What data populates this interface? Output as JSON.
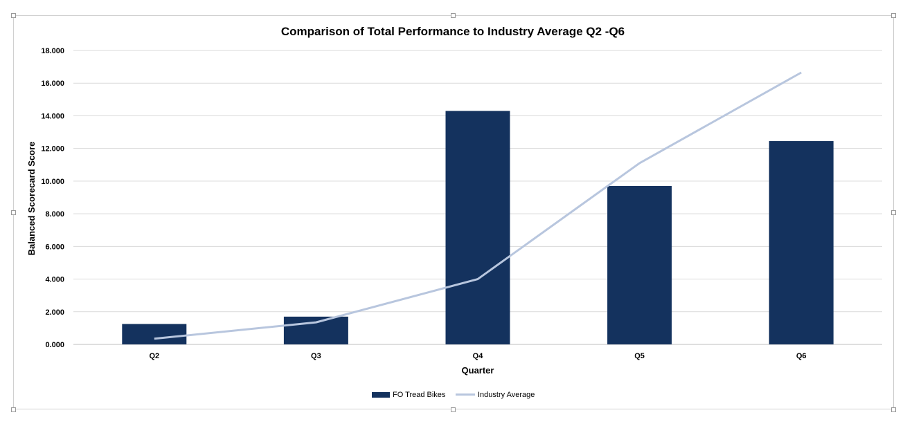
{
  "chart_data": {
    "type": "bar",
    "title": "Comparison of Total Performance to Industry Average Q2 -Q6",
    "xlabel": "Quarter",
    "ylabel": "Balanced Scorecard Score",
    "categories": [
      "Q2",
      "Q3",
      "Q4",
      "Q5",
      "Q6"
    ],
    "ylim": [
      0,
      18
    ],
    "yticks": [
      "0.000",
      "2.000",
      "4.000",
      "6.000",
      "8.000",
      "10.000",
      "12.000",
      "14.000",
      "16.000",
      "18.000"
    ],
    "grid": true,
    "legend_position": "bottom",
    "series": [
      {
        "name": "FO Tread Bikes",
        "kind": "bar",
        "color": "#14325e",
        "values": [
          1.25,
          1.7,
          14.3,
          9.7,
          12.45
        ]
      },
      {
        "name": "Industry Average",
        "kind": "line",
        "color": "#b8c6de",
        "values": [
          0.35,
          1.35,
          4.0,
          11.1,
          16.65
        ]
      }
    ]
  }
}
